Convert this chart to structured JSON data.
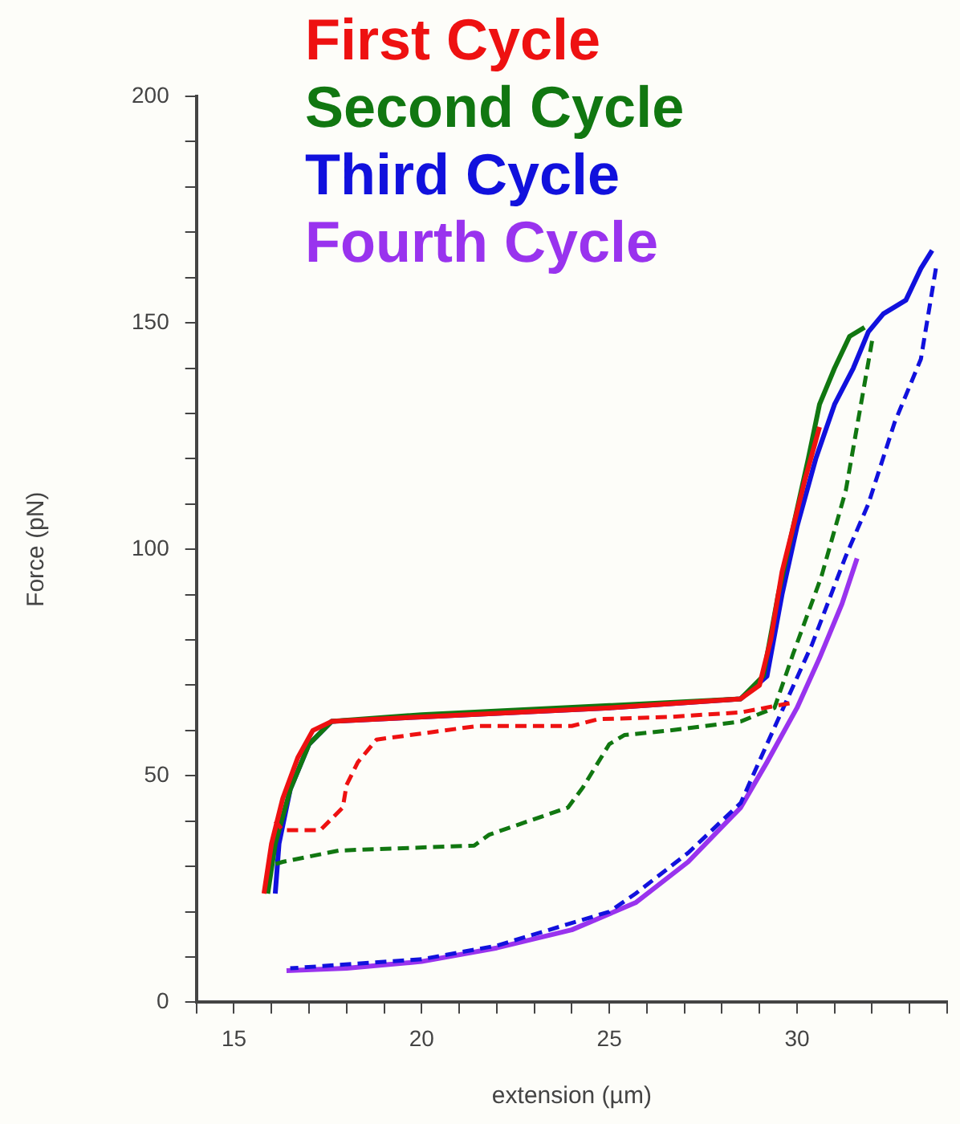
{
  "chart_data": {
    "type": "line",
    "xlabel": "extension (µm)",
    "ylabel": "Force (pN)",
    "xlim": [
      14,
      34
    ],
    "ylim": [
      0,
      200
    ],
    "xticks": [
      {
        "value": 14,
        "label": null
      },
      15,
      {
        "value": 16,
        "label": null
      },
      {
        "value": 17,
        "label": null
      },
      {
        "value": 18,
        "label": null
      },
      {
        "value": 19,
        "label": null
      },
      20,
      {
        "value": 21,
        "label": null
      },
      {
        "value": 22,
        "label": null
      },
      {
        "value": 23,
        "label": null
      },
      {
        "value": 24,
        "label": null
      },
      25,
      {
        "value": 26,
        "label": null
      },
      {
        "value": 27,
        "label": null
      },
      {
        "value": 28,
        "label": null
      },
      {
        "value": 29,
        "label": null
      },
      30,
      {
        "value": 31,
        "label": null
      },
      {
        "value": 32,
        "label": null
      },
      {
        "value": 33,
        "label": null
      },
      {
        "value": 34,
        "label": null
      }
    ],
    "yticks": [
      0,
      {
        "value": 10,
        "label": null
      },
      {
        "value": 20,
        "label": null
      },
      {
        "value": 30,
        "label": null
      },
      {
        "value": 40,
        "label": null
      },
      50,
      {
        "value": 60,
        "label": null
      },
      {
        "value": 70,
        "label": null
      },
      {
        "value": 80,
        "label": null
      },
      {
        "value": 90,
        "label": null
      },
      100,
      {
        "value": 110,
        "label": null
      },
      {
        "value": 120,
        "label": null
      },
      {
        "value": 130,
        "label": null
      },
      {
        "value": 140,
        "label": null
      },
      150,
      {
        "value": 160,
        "label": null
      },
      {
        "value": 170,
        "label": null
      },
      {
        "value": 180,
        "label": null
      },
      {
        "value": 190,
        "label": null
      },
      200
    ],
    "grid": false,
    "legend": "top",
    "marker": "none",
    "series": [
      {
        "color": "#ee1111",
        "line_style": "dashed",
        "x": [
          29.8,
          28.5,
          26.6,
          24.7,
          24.0,
          21.5,
          18.8,
          18.3,
          18.0,
          17.9,
          17.3,
          16.3,
          16.1
        ],
        "values": [
          66,
          64,
          63,
          62.5,
          61,
          61,
          58,
          53,
          48,
          43,
          38,
          38,
          40
        ]
      },
      {
        "color": "#117711",
        "line_style": "dashed",
        "x": [
          32.0,
          31.3,
          30.65,
          29.9,
          29.4,
          28.5,
          26.6,
          25.4,
          25.0,
          24.3,
          23.9,
          21.8,
          21.4,
          17.8,
          16.3,
          16.1
        ],
        "values": [
          146,
          113,
          94,
          77,
          65,
          62,
          60,
          59,
          57,
          47.5,
          43,
          37,
          34.6,
          33.5,
          31,
          30.5
        ]
      },
      {
        "color": "#1111dd",
        "line_style": "dashed",
        "x": [
          33.7,
          33.3,
          32.6,
          31.9,
          31.3,
          30.4,
          29.2,
          28.5,
          27.1,
          25.7,
          25,
          22,
          20,
          16.5
        ],
        "values": [
          162,
          142,
          128,
          110,
          98.5,
          79,
          57,
          44,
          33,
          24,
          20,
          12.5,
          9.5,
          7.5
        ]
      },
      {
        "name": "First Cycle",
        "color": "#ee1111",
        "line_style": "solid",
        "x": [
          15.8,
          16.0,
          16.3,
          16.7,
          17.1,
          17.6,
          20,
          25,
          28.5,
          29.0,
          29.3,
          29.6,
          29.9,
          30.2,
          30.6
        ],
        "values": [
          24,
          35,
          45,
          54,
          60,
          62,
          63,
          65,
          67,
          70,
          80,
          95,
          105,
          115,
          127
        ]
      },
      {
        "name": "Second Cycle",
        "color": "#117711",
        "line_style": "solid",
        "x": [
          15.9,
          16.1,
          16.5,
          17.0,
          17.6,
          20,
          25,
          28.5,
          29.1,
          29.5,
          29.9,
          30.3,
          30.6,
          31.0,
          31.4,
          31.8
        ],
        "values": [
          24,
          35,
          47,
          57,
          62,
          63.5,
          65.5,
          67,
          72,
          90,
          105,
          120,
          132,
          140,
          147,
          149
        ]
      },
      {
        "name": "Third Cycle",
        "color": "#1111dd",
        "line_style": "solid",
        "x": [
          16.1,
          16.2,
          16.5,
          17.0,
          17.6,
          20,
          25,
          28.5,
          29.2,
          29.6,
          30.0,
          30.5,
          31.0,
          31.5,
          31.9,
          32.3,
          32.9,
          33.3,
          33.6
        ],
        "values": [
          24,
          35,
          47,
          57,
          62,
          63,
          65,
          67,
          72,
          90,
          105,
          120,
          132,
          140,
          148,
          152,
          155,
          162,
          166
        ]
      },
      {
        "name": "Fourth Cycle",
        "color": "#9933ee",
        "line_style": "solid",
        "x": [
          16.4,
          18,
          20,
          22,
          24,
          25.7,
          27.1,
          28.5,
          29.2,
          30.0,
          30.6,
          31.2,
          31.6
        ],
        "values": [
          7,
          7.5,
          9,
          12,
          16,
          22,
          31,
          43,
          53,
          65,
          76,
          88,
          98
        ]
      }
    ]
  }
}
